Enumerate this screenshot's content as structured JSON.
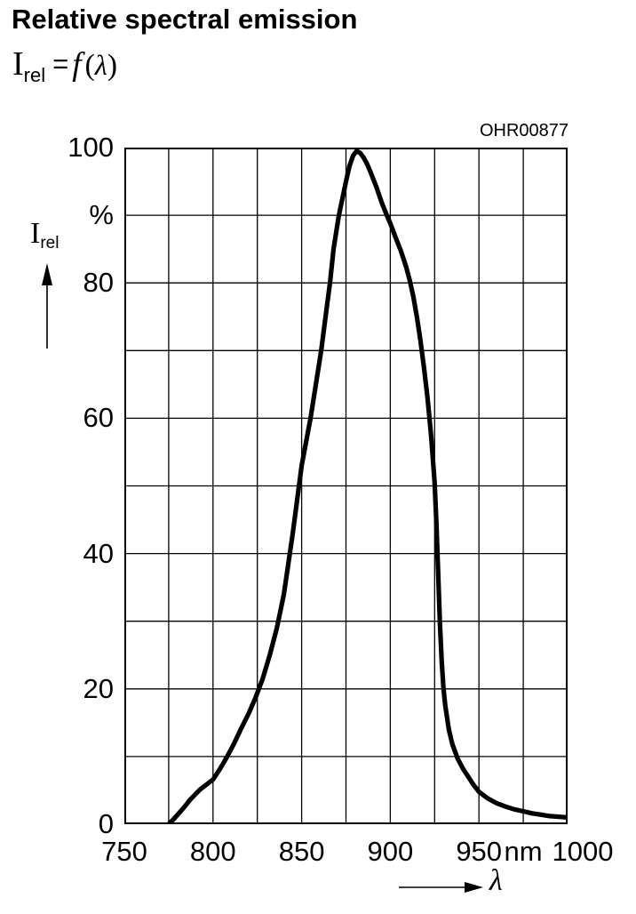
{
  "header": {
    "title": "Relative spectral emission",
    "formula": {
      "symbol": "I",
      "symbol_sub": "rel",
      "equals": "=",
      "function": "f",
      "open_paren": "(",
      "lambda": "λ",
      "close_paren": ")"
    }
  },
  "chart": {
    "id": "OHR00877",
    "y_axis_symbol": "I",
    "y_axis_symbol_sub": "rel",
    "y_unit": "%",
    "x_unit": "nm",
    "x_symbol": "λ"
  },
  "chart_data": {
    "type": "line",
    "title": "Relative spectral emission",
    "xlabel": "λ (nm)",
    "ylabel": "Irel (%)",
    "xlim": [
      750,
      1000
    ],
    "ylim": [
      0,
      100
    ],
    "x_ticks": [
      750,
      800,
      850,
      900,
      950,
      1000
    ],
    "y_ticks": [
      100,
      80,
      60,
      40,
      20,
      0
    ],
    "y_unit_at": 90,
    "x_grid_step": 25,
    "y_grid_step": 10,
    "grid": true,
    "line_color": "#000000",
    "peak": {
      "x": 881,
      "y": 99.5
    },
    "series": [
      {
        "name": "relative spectral emission",
        "points": [
          [
            775,
            0
          ],
          [
            778,
            0.8
          ],
          [
            781,
            1.7
          ],
          [
            784,
            2.6
          ],
          [
            787,
            3.6
          ],
          [
            790,
            4.4
          ],
          [
            793,
            5.2
          ],
          [
            796,
            5.8
          ],
          [
            800,
            6.6
          ],
          [
            804,
            8.2
          ],
          [
            808,
            10
          ],
          [
            812,
            12
          ],
          [
            816,
            14.2
          ],
          [
            820,
            16.3
          ],
          [
            824,
            18.7
          ],
          [
            828,
            21.5
          ],
          [
            832,
            25
          ],
          [
            836,
            29
          ],
          [
            840,
            34
          ],
          [
            845,
            43
          ],
          [
            850,
            53
          ],
          [
            855,
            60
          ],
          [
            858,
            65
          ],
          [
            861,
            70
          ],
          [
            864,
            76
          ],
          [
            866,
            80
          ],
          [
            868,
            85
          ],
          [
            871,
            90
          ],
          [
            873,
            92.5
          ],
          [
            875,
            95
          ],
          [
            877,
            97.3
          ],
          [
            879,
            98.8
          ],
          [
            881,
            99.5
          ],
          [
            883,
            99.2
          ],
          [
            885,
            98.5
          ],
          [
            887,
            97.5
          ],
          [
            889,
            96.3
          ],
          [
            892,
            94.3
          ],
          [
            895,
            92
          ],
          [
            898,
            90
          ],
          [
            900,
            88.8
          ],
          [
            903,
            86.7
          ],
          [
            906,
            84.7
          ],
          [
            909,
            82.3
          ],
          [
            911,
            80.3
          ],
          [
            913,
            78
          ],
          [
            915,
            75
          ],
          [
            917,
            71.5
          ],
          [
            919,
            67.5
          ],
          [
            921,
            63
          ],
          [
            923,
            57.5
          ],
          [
            925,
            50.5
          ],
          [
            926,
            44.5
          ],
          [
            927,
            37
          ],
          [
            928,
            29.5
          ],
          [
            929,
            24
          ],
          [
            930,
            20
          ],
          [
            931,
            17.5
          ],
          [
            933,
            14
          ],
          [
            935,
            11.8
          ],
          [
            938,
            9.7
          ],
          [
            941,
            8.2
          ],
          [
            944,
            7
          ],
          [
            947,
            5.8
          ],
          [
            950,
            4.8
          ],
          [
            955,
            3.8
          ],
          [
            960,
            3.1
          ],
          [
            965,
            2.6
          ],
          [
            970,
            2.2
          ],
          [
            975,
            1.9
          ],
          [
            980,
            1.6
          ],
          [
            985,
            1.4
          ],
          [
            990,
            1.2
          ],
          [
            995,
            1.1
          ],
          [
            1000,
            1
          ]
        ]
      }
    ]
  }
}
